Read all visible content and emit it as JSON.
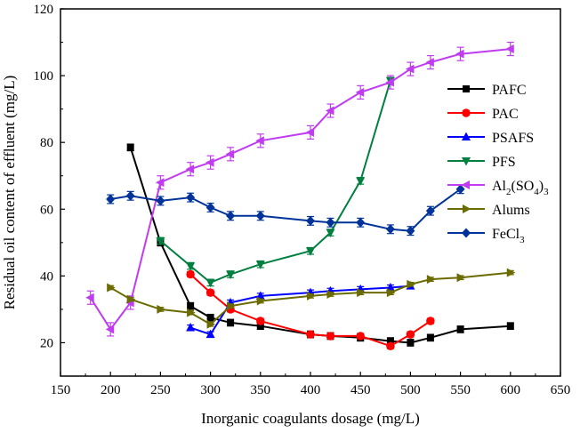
{
  "chart_data": {
    "type": "line",
    "title": "",
    "xlabel": "Inorganic coagulants dosage (mg/L)",
    "ylabel": "Residual oil content of effluent (mg/L)",
    "xlim": [
      150,
      650
    ],
    "ylim": [
      10,
      120
    ],
    "xticks": [
      "150",
      "200",
      "250",
      "300",
      "350",
      "400",
      "450",
      "500",
      "550",
      "600",
      "650"
    ],
    "yticks": [
      "20",
      "40",
      "60",
      "80",
      "100",
      "120"
    ],
    "legend_position": "center-right",
    "series": [
      {
        "name": "PAFC",
        "label_main": "PAFC",
        "label_sub": "",
        "label_tail": "",
        "color": "#000000",
        "marker": "square",
        "error": 1.0,
        "points": [
          [
            220,
            78.5
          ],
          [
            250,
            50
          ],
          [
            280,
            31
          ],
          [
            300,
            27.5
          ],
          [
            320,
            26
          ],
          [
            350,
            25
          ],
          [
            400,
            22.5
          ],
          [
            420,
            22
          ],
          [
            450,
            21.5
          ],
          [
            480,
            20.5
          ],
          [
            500,
            20
          ],
          [
            520,
            21.5
          ],
          [
            550,
            24
          ],
          [
            600,
            25
          ]
        ]
      },
      {
        "name": "PAC",
        "label_main": "PAC",
        "label_sub": "",
        "label_tail": "",
        "color": "#ff0000",
        "marker": "circle",
        "error": 0.8,
        "points": [
          [
            280,
            40.5
          ],
          [
            300,
            35
          ],
          [
            320,
            30
          ],
          [
            350,
            26.5
          ],
          [
            400,
            22.5
          ],
          [
            420,
            22
          ],
          [
            450,
            22
          ],
          [
            480,
            19
          ],
          [
            500,
            22.5
          ],
          [
            520,
            26.5
          ]
        ]
      },
      {
        "name": "PSAFS",
        "label_main": "PSAFS",
        "label_sub": "",
        "label_tail": "",
        "color": "#0000ff",
        "marker": "triangle-up",
        "error": 0.8,
        "points": [
          [
            280,
            24.5
          ],
          [
            300,
            22.5
          ],
          [
            320,
            32
          ],
          [
            350,
            34
          ],
          [
            400,
            35
          ],
          [
            420,
            35.5
          ],
          [
            450,
            36
          ],
          [
            480,
            36.5
          ],
          [
            500,
            37
          ]
        ]
      },
      {
        "name": "PFS",
        "label_main": "PFS",
        "label_sub": "",
        "label_tail": "",
        "color": "#007f3f",
        "marker": "triangle-down",
        "error": 1.0,
        "points": [
          [
            250,
            50.5
          ],
          [
            280,
            43
          ],
          [
            300,
            38
          ],
          [
            320,
            40.5
          ],
          [
            350,
            43.5
          ],
          [
            400,
            47.5
          ],
          [
            420,
            53
          ],
          [
            450,
            68.5
          ],
          [
            480,
            98.5
          ]
        ]
      },
      {
        "name": "Al2(SO4)3",
        "label_main": "Al",
        "label_sub": "2",
        "label_tail": "(SO",
        "label_sub2": "4",
        "label_tail2": ")",
        "label_sub3": "3",
        "color": "#c03cf0",
        "marker": "triangle-left",
        "error": 2.0,
        "points": [
          [
            180,
            33.5
          ],
          [
            200,
            24
          ],
          [
            220,
            32
          ],
          [
            250,
            68
          ],
          [
            280,
            72
          ],
          [
            300,
            74
          ],
          [
            320,
            76.5
          ],
          [
            350,
            80.5
          ],
          [
            400,
            83
          ],
          [
            420,
            89.5
          ],
          [
            450,
            95
          ],
          [
            480,
            98
          ],
          [
            500,
            102
          ],
          [
            520,
            104
          ],
          [
            550,
            106.5
          ],
          [
            600,
            108
          ]
        ]
      },
      {
        "name": "Alums",
        "label_main": "Alums",
        "label_sub": "",
        "label_tail": "",
        "color": "#6b6b00",
        "marker": "triangle-right",
        "error": 0.6,
        "points": [
          [
            200,
            36.5
          ],
          [
            220,
            33
          ],
          [
            250,
            30
          ],
          [
            280,
            29
          ],
          [
            300,
            25.5
          ],
          [
            320,
            31
          ],
          [
            350,
            32.5
          ],
          [
            400,
            34
          ],
          [
            420,
            34.5
          ],
          [
            450,
            35
          ],
          [
            480,
            35
          ],
          [
            500,
            37.5
          ],
          [
            520,
            39
          ],
          [
            550,
            39.5
          ],
          [
            600,
            41
          ]
        ]
      },
      {
        "name": "FeCl3",
        "label_main": "FeCl",
        "label_sub": "3",
        "label_tail": "",
        "color": "#003399",
        "marker": "diamond",
        "error": 1.3,
        "points": [
          [
            200,
            63
          ],
          [
            220,
            64
          ],
          [
            250,
            62.5
          ],
          [
            280,
            63.5
          ],
          [
            300,
            60.5
          ],
          [
            320,
            58
          ],
          [
            350,
            58
          ],
          [
            400,
            56.5
          ],
          [
            420,
            56
          ],
          [
            450,
            56
          ],
          [
            480,
            54
          ],
          [
            500,
            53.5
          ],
          [
            520,
            59.5
          ],
          [
            550,
            66
          ]
        ]
      }
    ]
  }
}
